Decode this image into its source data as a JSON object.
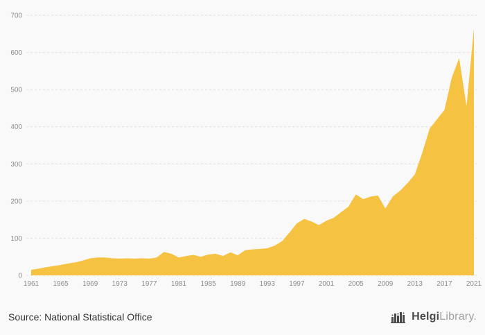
{
  "chart_data": {
    "type": "area",
    "title": "",
    "xlabel": "",
    "ylabel": "",
    "x": [
      1961,
      1962,
      1963,
      1964,
      1965,
      1966,
      1967,
      1968,
      1969,
      1970,
      1971,
      1972,
      1973,
      1974,
      1975,
      1976,
      1977,
      1978,
      1979,
      1980,
      1981,
      1982,
      1983,
      1984,
      1985,
      1986,
      1987,
      1988,
      1989,
      1990,
      1991,
      1992,
      1993,
      1994,
      1995,
      1996,
      1997,
      1998,
      1999,
      2000,
      2001,
      2002,
      2003,
      2004,
      2005,
      2006,
      2007,
      2008,
      2009,
      2010,
      2011,
      2012,
      2013,
      2014,
      2015,
      2016,
      2017,
      2018,
      2019,
      2020,
      2021
    ],
    "values": [
      15,
      18,
      22,
      25,
      28,
      32,
      35,
      40,
      46,
      48,
      48,
      46,
      45,
      46,
      45,
      46,
      45,
      48,
      63,
      58,
      48,
      52,
      55,
      50,
      56,
      58,
      52,
      62,
      54,
      68,
      70,
      71,
      73,
      80,
      92,
      115,
      140,
      152,
      145,
      135,
      147,
      155,
      170,
      185,
      218,
      205,
      212,
      215,
      180,
      212,
      228,
      248,
      272,
      330,
      395,
      420,
      445,
      532,
      585,
      455,
      665
    ],
    "ylim": [
      0,
      700
    ],
    "ytick_step": 100,
    "xticks": [
      1961,
      1965,
      1969,
      1973,
      1977,
      1981,
      1985,
      1989,
      1993,
      1997,
      2001,
      2005,
      2009,
      2013,
      2017,
      2021
    ],
    "grid": true,
    "legend": "none",
    "area_color": "#f6c242",
    "grid_color": "#e0e0e0",
    "tick_color": "#8c8c8c",
    "background": "#f9f9f9"
  },
  "footer": {
    "source": "Source: National Statistical Office"
  },
  "logo": {
    "helgi": "Helgi",
    "library": "Library."
  }
}
